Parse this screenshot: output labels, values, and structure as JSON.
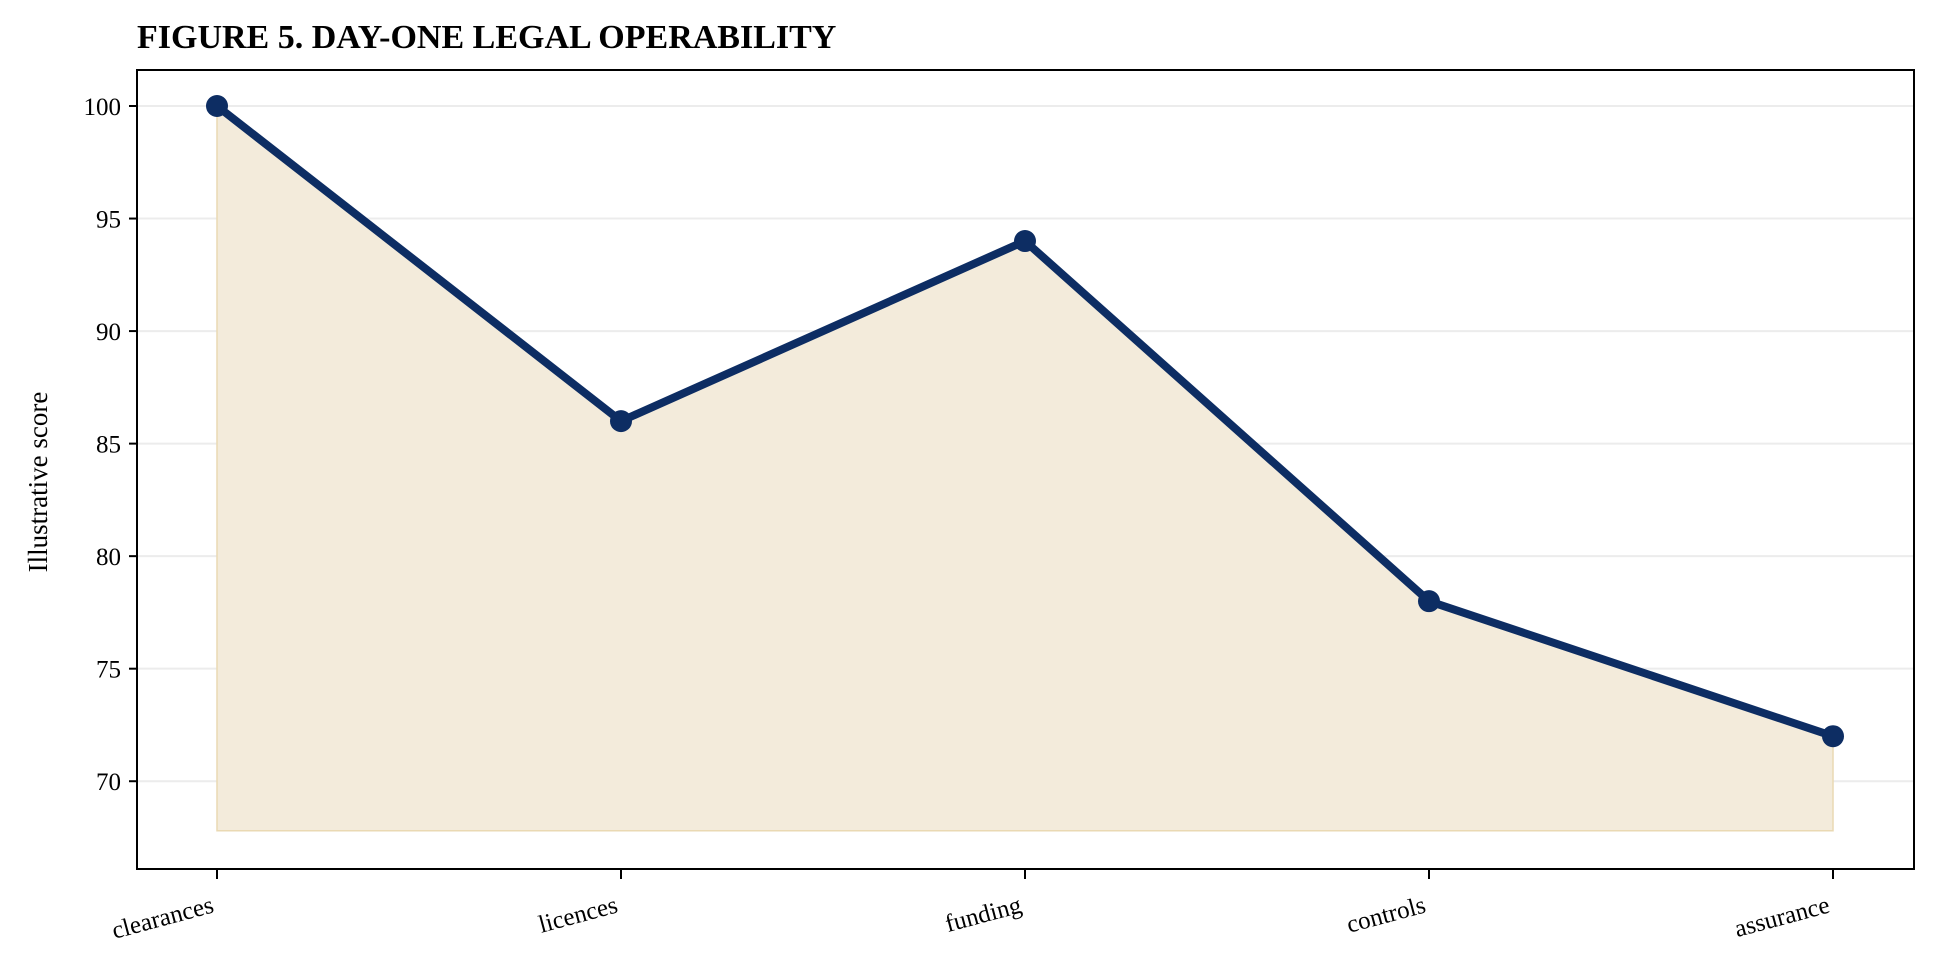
{
  "chart_data": {
    "type": "area",
    "title": "FIGURE 5. DAY-ONE LEGAL OPERABILITY",
    "xlabel": "",
    "ylabel": "Illustrative score",
    "categories": [
      "clearances",
      "licences",
      "funding",
      "controls",
      "assurance"
    ],
    "series": [
      {
        "values": [
          100,
          86,
          94,
          78,
          72
        ]
      }
    ],
    "ylim": [
      66.1,
      101.6
    ],
    "area_baseline": 67.8,
    "yticks": [
      70,
      75,
      80,
      85,
      90,
      95,
      100
    ],
    "grid": "horizontal",
    "legend": "none",
    "colors": {
      "line": "#0d2d63",
      "area": "#f3ebdb",
      "area_edge": "#ead9b3",
      "grid": "#ececec",
      "axes": "#000000"
    }
  }
}
